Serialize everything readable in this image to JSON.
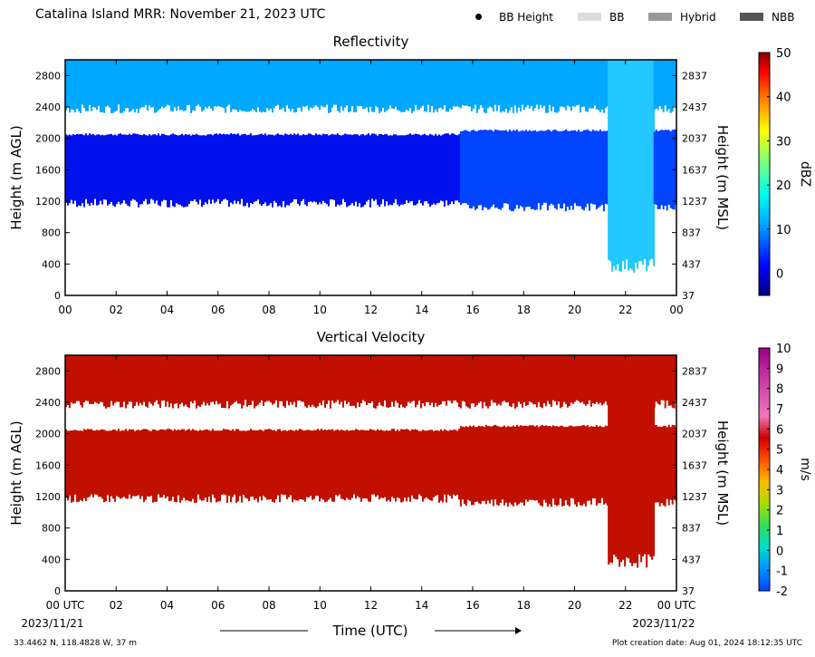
{
  "header": {
    "title": "Catalina Island MRR:  November 21, 2023 UTC",
    "legend": [
      {
        "label": "BB Height",
        "marker": "dot",
        "color": "#000000"
      },
      {
        "label": "BB",
        "marker": "swatch",
        "color": "#dcdcdc"
      },
      {
        "label": "Hybrid",
        "marker": "swatch",
        "color": "#999999"
      },
      {
        "label": "NBB",
        "marker": "swatch",
        "color": "#555555"
      }
    ]
  },
  "footer": {
    "location": "33.4462 N, 118.4828 W, 37 m",
    "creation": "Plot creation date: Aug 01, 2024 18:12:35 UTC"
  },
  "chart_data": [
    {
      "type": "heatmap",
      "title": "Reflectivity",
      "ylabel": "Height (m AGL)",
      "y2label": "Height (m MSL)",
      "x_ticks": [
        "00",
        "02",
        "04",
        "06",
        "08",
        "10",
        "12",
        "14",
        "16",
        "18",
        "20",
        "22",
        "00"
      ],
      "y_ticks": [
        0,
        400,
        800,
        1200,
        1600,
        2000,
        2400,
        2800
      ],
      "y2_ticks": [
        37,
        437,
        837,
        1237,
        1637,
        2037,
        2437,
        2837
      ],
      "ylim": [
        0,
        3000
      ],
      "xlim": [
        0,
        24
      ],
      "colorbar": {
        "label": "dBZ",
        "range": [
          -5,
          50
        ],
        "ticks": [
          0,
          10,
          20,
          30,
          40,
          50
        ]
      },
      "layers": [
        {
          "t_start": 0,
          "t_end": 15.5,
          "bottom": 1150,
          "top": 2050,
          "dbz": 3
        },
        {
          "t_start": 0,
          "t_end": 15.5,
          "bottom": 2350,
          "top": 3000,
          "dbz": 9
        },
        {
          "t_start": 15.5,
          "t_end": 21.3,
          "bottom": 1100,
          "top": 2100,
          "dbz": 5
        },
        {
          "t_start": 15.5,
          "t_end": 21.3,
          "bottom": 2350,
          "top": 3000,
          "dbz": 9
        },
        {
          "t_start": 21.3,
          "t_end": 23.1,
          "bottom": 320,
          "top": 3000,
          "dbz": 10
        },
        {
          "t_start": 23.1,
          "t_end": 24,
          "bottom": 1100,
          "top": 2100,
          "dbz": 5
        },
        {
          "t_start": 23.1,
          "t_end": 24,
          "bottom": 2350,
          "top": 3000,
          "dbz": 9
        }
      ]
    },
    {
      "type": "heatmap",
      "title": "Vertical Velocity",
      "xlabel": "Time (UTC)",
      "ylabel": "Height (m AGL)",
      "y2label": "Height (m MSL)",
      "x_ticks": [
        "00 UTC",
        "02",
        "04",
        "06",
        "08",
        "10",
        "12",
        "14",
        "16",
        "18",
        "20",
        "22",
        "00 UTC"
      ],
      "x_dates": [
        "2023/11/21",
        "2023/11/22"
      ],
      "y_ticks": [
        0,
        400,
        800,
        1200,
        1600,
        2000,
        2400,
        2800
      ],
      "y2_ticks": [
        37,
        437,
        837,
        1237,
        1637,
        2037,
        2437,
        2837
      ],
      "ylim": [
        0,
        3000
      ],
      "xlim": [
        0,
        24
      ],
      "colorbar": {
        "label": "m/s",
        "range": [
          -2,
          10
        ],
        "ticks": [
          -2,
          -1,
          0,
          1,
          2,
          3,
          4,
          5,
          6,
          7,
          8,
          9,
          10
        ]
      },
      "layers": [
        {
          "t_start": 0,
          "t_end": 15.5,
          "bottom": 1150,
          "top": 2050,
          "w": 6
        },
        {
          "t_start": 0,
          "t_end": 15.5,
          "bottom": 2350,
          "top": 3000,
          "w": 6
        },
        {
          "t_start": 15.5,
          "t_end": 21.3,
          "bottom": 1100,
          "top": 2100,
          "w": 6
        },
        {
          "t_start": 15.5,
          "t_end": 21.3,
          "bottom": 2350,
          "top": 3000,
          "w": 6
        },
        {
          "t_start": 21.3,
          "t_end": 23.1,
          "bottom": 320,
          "top": 3000,
          "w": 6
        },
        {
          "t_start": 23.1,
          "t_end": 24,
          "bottom": 1100,
          "top": 2100,
          "w": 6
        },
        {
          "t_start": 23.1,
          "t_end": 24,
          "bottom": 2350,
          "top": 3000,
          "w": 6
        }
      ]
    }
  ]
}
